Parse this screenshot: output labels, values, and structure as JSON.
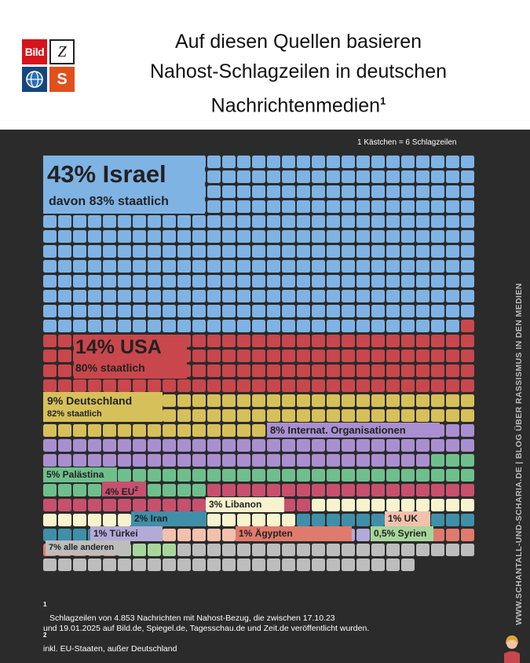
{
  "header": {
    "title_lines": [
      "Auf diesen Quellen basieren",
      "Nahost-Schlagzeilen in deutschen",
      "Nachrichtenmedien"
    ],
    "title_footnote_mark": "1",
    "logos": {
      "bild": "Bild",
      "zeit": "Z",
      "spiegel": "S"
    }
  },
  "scale_note": "1  Kästchen = 6 Schlagzeilen",
  "side_text": "WWW.SCHANTALL-UND-SCHARIA.DE | BLOG ÜBER RASSISMUS IN DEN MEDIEN",
  "labels": {
    "israel": {
      "title": "43% Israel",
      "sub": "davon 83% staatlich"
    },
    "usa": {
      "title": "14% USA",
      "sub": "80% staatlich"
    },
    "deutschland": {
      "title": "9% Deutschland",
      "sub": "82% staatlich"
    },
    "io": "8% Internat. Organisationen",
    "palaestina": "5% Palästina",
    "eu": "4% EU",
    "eu_mark": "2",
    "libanon": "3% Libanon",
    "iran": "2% Iran",
    "uk": "1% UK",
    "tuerkei": "1% Türkei",
    "aegypten": "1% Ägypten",
    "syrien": "0,5% Syrien",
    "andere": "7% alle anderen"
  },
  "footnotes": {
    "n1_mark": "1",
    "n1_line1": "Schlagzeilen von 4.853 Nachrichten mit Nahost-Bezug, die zwischen 17.10.23",
    "n1_line2": "und 19.01.2025 auf Bild.de, Spiegel.de, Tagesschau.de und Zeit.de veröffentlicht wurden.",
    "n2_mark": "2",
    "n2_text": "inkl. EU-Staaten, außer Deutschland"
  },
  "colors": {
    "background": "#2b2b2b",
    "israel": "#7fb3e4",
    "usa": "#c8474c",
    "deutschland": "#d6c05a",
    "io": "#a98fd0",
    "palaestina": "#6fbf8d",
    "eu": "#c8506f",
    "libanon": "#f8f3cf",
    "iran": "#3f8fa8",
    "uk": "#f2c1ad",
    "tuerkei": "#b3aad8",
    "aegypten": "#e07a6c",
    "syrien": "#a7d69c",
    "andere": "#bdbdbd"
  },
  "chart_data": {
    "type": "waffle",
    "unit": "1  Kästchen = 6 Schlagzeilen",
    "columns": 29,
    "total_squares": 808,
    "series": [
      {
        "name": "Israel",
        "percent": 43,
        "state_share_percent": 83,
        "squares": 347,
        "color_key": "israel"
      },
      {
        "name": "USA",
        "percent": 14,
        "state_share_percent": 80,
        "squares": 121,
        "color_key": "usa"
      },
      {
        "name": "Deutschland",
        "percent": 9,
        "state_share_percent": 82,
        "squares": 73,
        "color_key": "deutschland"
      },
      {
        "name": "Internat. Organisationen",
        "percent": 8,
        "squares": 65,
        "color_key": "io"
      },
      {
        "name": "Palästina",
        "percent": 5,
        "squares": 43,
        "color_key": "palaestina"
      },
      {
        "name": "EU",
        "percent": 4,
        "squares": 36,
        "color_key": "eu"
      },
      {
        "name": "Libanon",
        "percent": 3,
        "squares": 28,
        "color_key": "libanon"
      },
      {
        "name": "Iran",
        "percent": 2,
        "squares": 18,
        "color_key": "iran"
      },
      {
        "name": "UK",
        "percent": 1,
        "squares": 8,
        "color_key": "uk"
      },
      {
        "name": "Türkei",
        "percent": 1,
        "squares": 10,
        "color_key": "tuerkei"
      },
      {
        "name": "Ägypten",
        "percent": 1,
        "squares": 10,
        "color_key": "aegypten"
      },
      {
        "name": "Syrien",
        "percent": 0.5,
        "squares": 4,
        "color_key": "syrien"
      },
      {
        "name": "alle anderen",
        "percent": 7,
        "squares": 45,
        "color_key": "andere"
      }
    ]
  }
}
